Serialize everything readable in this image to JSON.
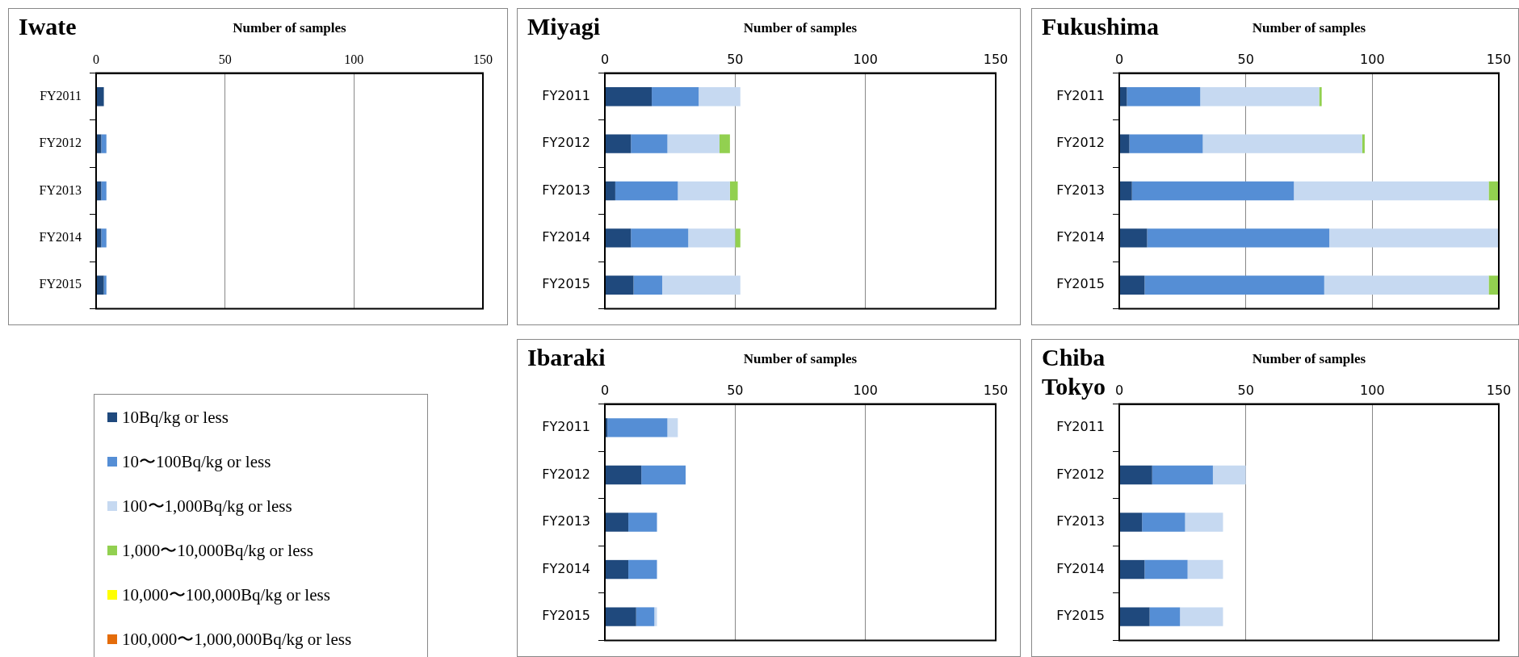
{
  "chart_data": [
    {
      "type": "bar",
      "orientation": "horizontal",
      "stacked": true,
      "title": "Iwate",
      "xlabel": "Number of samples",
      "categories": [
        "FY2011",
        "FY2012",
        "FY2013",
        "FY2014",
        "FY2015"
      ],
      "xlim": [
        0,
        150
      ],
      "xticks": [
        0,
        50,
        100,
        150
      ],
      "grid": "x",
      "legend": "bottom left",
      "series": [
        {
          "name": "10Bq/kg or less",
          "color": "#1f497d",
          "values": [
            3,
            2,
            2,
            2,
            3
          ]
        },
        {
          "name": "10〜100Bq/kg or less",
          "color": "#558ed5",
          "values": [
            0,
            2,
            2,
            2,
            1
          ]
        },
        {
          "name": "100〜1,000Bq/kg or less",
          "color": "#c6d9f1",
          "values": [
            0,
            0,
            0,
            0,
            0
          ]
        },
        {
          "name": "1,000〜10,000Bq/kg or less",
          "color": "#92d050",
          "values": [
            0,
            0,
            0,
            0,
            0
          ]
        },
        {
          "name": "10,000〜100,000Bq/kg or less",
          "color": "#ffff00",
          "values": [
            0,
            0,
            0,
            0,
            0
          ]
        },
        {
          "name": "100,000〜1,000,000Bq/kg or less",
          "color": "#e46c0a",
          "values": [
            0,
            0,
            0,
            0,
            0
          ]
        }
      ]
    },
    {
      "type": "bar",
      "orientation": "horizontal",
      "stacked": true,
      "title": "Miyagi",
      "xlabel": "Number of samples",
      "categories": [
        "FY2011",
        "FY2012",
        "FY2013",
        "FY2014",
        "FY2015"
      ],
      "xlim": [
        0,
        150
      ],
      "xticks": [
        0,
        50,
        100,
        150
      ],
      "grid": "x",
      "series": [
        {
          "color": "#1f497d",
          "values": [
            18,
            10,
            4,
            10,
            11
          ]
        },
        {
          "color": "#558ed5",
          "values": [
            18,
            14,
            24,
            22,
            11
          ]
        },
        {
          "color": "#c6d9f1",
          "values": [
            16,
            20,
            20,
            18,
            30
          ]
        },
        {
          "color": "#92d050",
          "values": [
            0,
            4,
            3,
            2,
            0
          ]
        },
        {
          "color": "#ffff00",
          "values": [
            0,
            0,
            0,
            0,
            0
          ]
        },
        {
          "color": "#e46c0a",
          "values": [
            0,
            0,
            0,
            0,
            0
          ]
        }
      ]
    },
    {
      "type": "bar",
      "orientation": "horizontal",
      "stacked": true,
      "title": "Fukushima",
      "xlabel": "Number of samples",
      "categories": [
        "FY2011",
        "FY2012",
        "FY2013",
        "FY2014",
        "FY2015"
      ],
      "xlim": [
        0,
        150
      ],
      "xticks": [
        0,
        50,
        100,
        150
      ],
      "grid": "x",
      "series": [
        {
          "color": "#1f497d",
          "values": [
            3,
            4,
            5,
            11,
            10
          ]
        },
        {
          "color": "#558ed5",
          "values": [
            29,
            29,
            64,
            72,
            71
          ]
        },
        {
          "color": "#c6d9f1",
          "values": [
            47,
            63,
            77,
            67,
            65
          ]
        },
        {
          "color": "#92d050",
          "values": [
            1,
            1,
            4,
            0,
            4
          ]
        },
        {
          "color": "#ffff00",
          "values": [
            0,
            0,
            0,
            0,
            0
          ]
        },
        {
          "color": "#e46c0a",
          "values": [
            0,
            0,
            0,
            0,
            0
          ]
        }
      ]
    },
    {
      "type": "bar",
      "orientation": "horizontal",
      "stacked": true,
      "title": "Ibaraki",
      "xlabel": "Number of samples",
      "categories": [
        "FY2011",
        "FY2012",
        "FY2013",
        "FY2014",
        "FY2015"
      ],
      "xlim": [
        0,
        150
      ],
      "xticks": [
        0,
        50,
        100,
        150
      ],
      "grid": "x",
      "series": [
        {
          "color": "#1f497d",
          "values": [
            1,
            14,
            9,
            9,
            12
          ]
        },
        {
          "color": "#558ed5",
          "values": [
            23,
            17,
            11,
            11,
            7
          ]
        },
        {
          "color": "#c6d9f1",
          "values": [
            4,
            0,
            0,
            0,
            1
          ]
        },
        {
          "color": "#92d050",
          "values": [
            0,
            0,
            0,
            0,
            0
          ]
        },
        {
          "color": "#ffff00",
          "values": [
            0,
            0,
            0,
            0,
            0
          ]
        },
        {
          "color": "#e46c0a",
          "values": [
            0,
            0,
            0,
            0,
            0
          ]
        }
      ]
    },
    {
      "type": "bar",
      "orientation": "horizontal",
      "stacked": true,
      "title": "Chiba\nTokyo",
      "xlabel": "Number of samples",
      "categories": [
        "FY2011",
        "FY2012",
        "FY2013",
        "FY2014",
        "FY2015"
      ],
      "xlim": [
        0,
        150
      ],
      "xticks": [
        0,
        50,
        100,
        150
      ],
      "grid": "x",
      "series": [
        {
          "color": "#1f497d",
          "values": [
            null,
            13,
            9,
            10,
            12
          ]
        },
        {
          "color": "#558ed5",
          "values": [
            null,
            24,
            17,
            17,
            12
          ]
        },
        {
          "color": "#c6d9f1",
          "values": [
            null,
            13,
            15,
            14,
            17
          ]
        },
        {
          "color": "#92d050",
          "values": [
            null,
            0,
            0,
            0,
            0
          ]
        },
        {
          "color": "#ffff00",
          "values": [
            null,
            0,
            0,
            0,
            0
          ]
        },
        {
          "color": "#e46c0a",
          "values": [
            null,
            0,
            0,
            0,
            0
          ]
        }
      ]
    }
  ]
}
